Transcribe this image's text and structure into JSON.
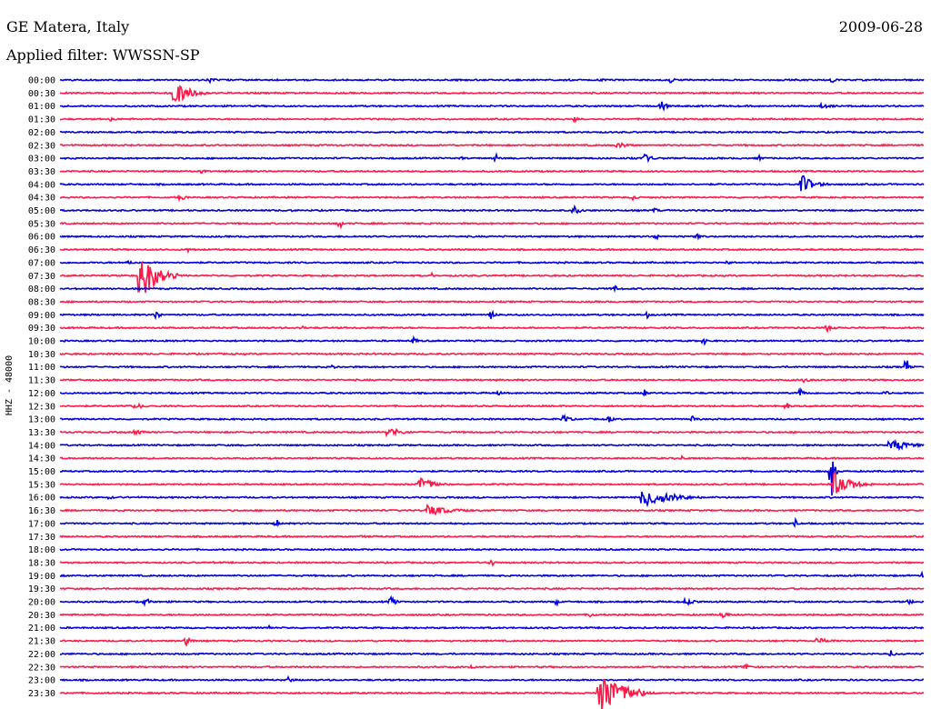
{
  "header": {
    "station": "GE Matera, Italy",
    "filter": "Applied filter: WWSSN-SP",
    "date": "2009-06-28"
  },
  "chart_data": {
    "type": "line",
    "title": "GE Matera, Italy",
    "ylabel": "HHZ - 48000",
    "row_labels": [
      "00:00",
      "00:30",
      "01:00",
      "01:30",
      "02:00",
      "02:30",
      "03:00",
      "03:30",
      "04:00",
      "04:30",
      "05:00",
      "05:30",
      "06:00",
      "06:30",
      "07:00",
      "07:30",
      "08:00",
      "08:30",
      "09:00",
      "09:30",
      "10:00",
      "10:30",
      "11:00",
      "11:30",
      "12:00",
      "12:30",
      "13:00",
      "13:30",
      "14:00",
      "14:30",
      "15:00",
      "15:30",
      "16:00",
      "16:30",
      "17:00",
      "17:30",
      "18:00",
      "18:30",
      "19:00",
      "19:30",
      "20:00",
      "20:30",
      "21:00",
      "21:30",
      "22:00",
      "22:30",
      "23:00",
      "23:30"
    ],
    "colors": [
      "#0000e0",
      "#ff1a4a"
    ],
    "grid": false,
    "legend": "none"
  }
}
